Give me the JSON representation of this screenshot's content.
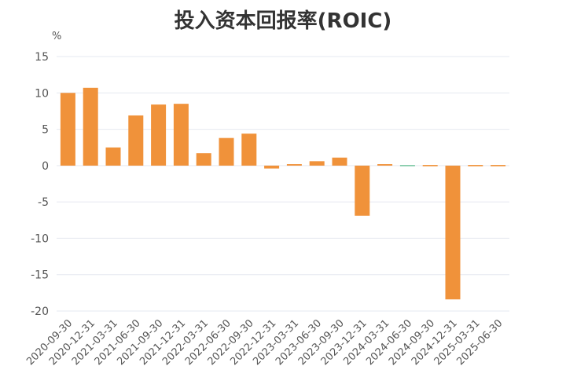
{
  "chart_data": {
    "type": "bar",
    "title": "投入资本回报率(ROIC)",
    "ylabel": "%",
    "ylim": [
      -20,
      15
    ],
    "yticks": [
      15,
      10,
      5,
      0,
      -5,
      -10,
      -15,
      -20
    ],
    "grid": true,
    "categories": [
      "2020-09-30",
      "2020-12-31",
      "2021-03-31",
      "2021-06-30",
      "2021-09-30",
      "2021-12-31",
      "2022-03-31",
      "2022-06-30",
      "2022-09-30",
      "2022-12-31",
      "2023-03-31",
      "2023-06-30",
      "2023-09-30",
      "2023-12-31",
      "2024-03-31",
      "2024-06-30",
      "2024-09-30",
      "2024-12-31",
      "2025-03-31",
      "2025-06-30"
    ],
    "values": [
      10.0,
      10.7,
      2.5,
      6.9,
      8.4,
      8.5,
      1.7,
      3.8,
      4.4,
      -0.4,
      0.2,
      0.6,
      1.1,
      -6.9,
      0.2,
      -0.1,
      0.05,
      -18.4,
      0.1,
      0.1
    ],
    "colors": {
      "bar": "#f0923a",
      "small_negative": "#7fc9a6",
      "grid": "#e6e9f0",
      "title": "#333333"
    }
  }
}
